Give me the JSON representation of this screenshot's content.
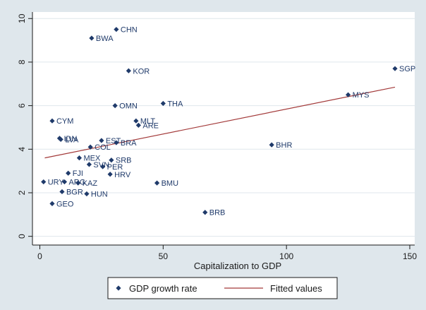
{
  "chart_data": {
    "type": "scatter",
    "xlabel": "Capitalization to GDP",
    "ylabel": "",
    "xlim": [
      -3,
      152
    ],
    "ylim": [
      -0.4,
      10.3
    ],
    "xticks": [
      0,
      50,
      100,
      150
    ],
    "yticks": [
      0,
      2,
      4,
      6,
      8,
      10
    ],
    "grid": "horizontal",
    "legend_position": "bottom",
    "colors": {
      "background": "#dfe7ec",
      "plot_background": "#ffffff",
      "grid": "#dfe7ec",
      "marker": "#1f3a6a",
      "label": "#1f3a6a",
      "fit_line": "#a33a3a"
    },
    "series": [
      {
        "name": "GDP growth rate",
        "kind": "scatter",
        "points": [
          {
            "label": "CHN",
            "x": 31,
            "y": 9.5
          },
          {
            "label": "BWA",
            "x": 21,
            "y": 9.1
          },
          {
            "label": "SGP",
            "x": 144,
            "y": 7.7
          },
          {
            "label": "KOR",
            "x": 36,
            "y": 7.6
          },
          {
            "label": "MYS",
            "x": 125,
            "y": 6.5
          },
          {
            "label": "THA",
            "x": 50,
            "y": 6.1
          },
          {
            "label": "OMN",
            "x": 30.5,
            "y": 6.0
          },
          {
            "label": "CYM",
            "x": 5,
            "y": 5.3
          },
          {
            "label": "MLT",
            "x": 39,
            "y": 5.3
          },
          {
            "label": "ARE",
            "x": 40,
            "y": 5.1
          },
          {
            "label": "IDN",
            "x": 8,
            "y": 4.5
          },
          {
            "label": "LVA",
            "x": 8.5,
            "y": 4.45
          },
          {
            "label": "EST",
            "x": 25,
            "y": 4.4
          },
          {
            "label": "BRA",
            "x": 31,
            "y": 4.3
          },
          {
            "label": "BHR",
            "x": 94,
            "y": 4.2
          },
          {
            "label": "COL",
            "x": 20.5,
            "y": 4.1
          },
          {
            "label": "MEX",
            "x": 16,
            "y": 3.6
          },
          {
            "label": "SRB",
            "x": 29,
            "y": 3.5
          },
          {
            "label": "SVN",
            "x": 20,
            "y": 3.3
          },
          {
            "label": "PER",
            "x": 25.5,
            "y": 3.2
          },
          {
            "label": "FJI",
            "x": 11.5,
            "y": 2.9
          },
          {
            "label": "HRV",
            "x": 28.5,
            "y": 2.85
          },
          {
            "label": "URY",
            "x": 1.5,
            "y": 2.5
          },
          {
            "label": "ARG",
            "x": 10,
            "y": 2.5
          },
          {
            "label": "KAZ",
            "x": 15.5,
            "y": 2.45
          },
          {
            "label": "BMU",
            "x": 47.5,
            "y": 2.45
          },
          {
            "label": "BGR",
            "x": 9,
            "y": 2.05
          },
          {
            "label": "HUN",
            "x": 19,
            "y": 1.95
          },
          {
            "label": "GEO",
            "x": 5,
            "y": 1.5
          },
          {
            "label": "BRB",
            "x": 67,
            "y": 1.1
          }
        ]
      },
      {
        "name": "Fitted values",
        "kind": "line",
        "points": [
          {
            "x": 2,
            "y": 3.6
          },
          {
            "x": 144,
            "y": 6.85
          }
        ]
      }
    ]
  }
}
